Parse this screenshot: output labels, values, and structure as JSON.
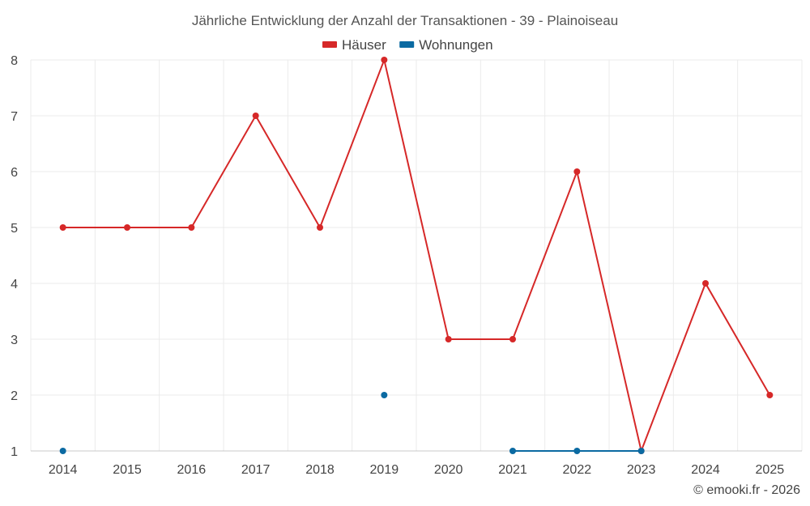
{
  "chart_data": {
    "type": "line",
    "title": "Jährliche Entwicklung der Anzahl der Transaktionen - 39 - Plainoiseau",
    "xlabel": "",
    "ylabel": "",
    "x": [
      "2014",
      "2015",
      "2016",
      "2017",
      "2018",
      "2019",
      "2020",
      "2021",
      "2022",
      "2023",
      "2024",
      "2025"
    ],
    "ylim": [
      1,
      8
    ],
    "yticks": [
      "1",
      "2",
      "3",
      "4",
      "5",
      "6",
      "7",
      "8"
    ],
    "grid": true,
    "legend_position": "top-center",
    "series": [
      {
        "name": "Häuser",
        "color": "#d62828",
        "values": [
          5,
          5,
          5,
          7,
          5,
          8,
          3,
          3,
          6,
          1,
          4,
          2
        ]
      },
      {
        "name": "Wohnungen",
        "color": "#0b6aa2",
        "values": [
          1,
          null,
          null,
          null,
          null,
          2,
          null,
          1,
          1,
          1,
          null,
          null
        ]
      }
    ]
  },
  "credit": "© emooki.fr - 2026"
}
